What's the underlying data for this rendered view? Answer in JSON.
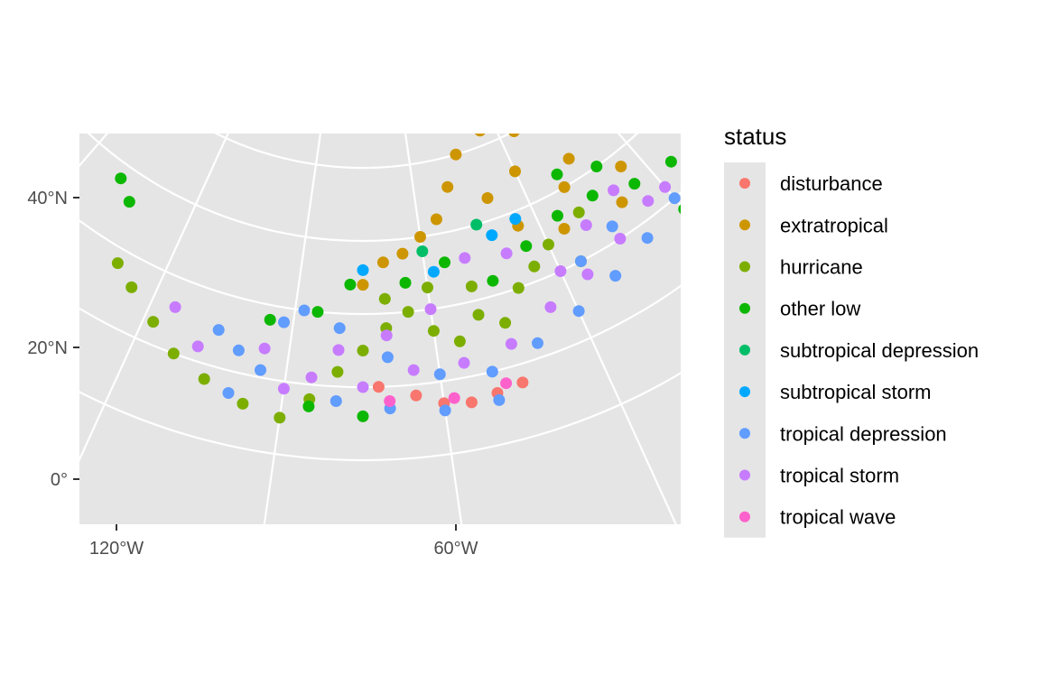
{
  "chart_data": {
    "type": "scatter",
    "projection": "polar (map graticule)",
    "grid": true,
    "legend_position": "right",
    "title": "",
    "xlabel": "",
    "ylabel": "",
    "x_ticks": [
      "120°W",
      "60°W"
    ],
    "y_ticks": [
      "40°N",
      "20°N",
      "0°"
    ],
    "legend": {
      "title": "status",
      "entries": [
        {
          "label": "disturbance",
          "color": "#F8766D"
        },
        {
          "label": "extratropical",
          "color": "#CD9600"
        },
        {
          "label": "hurricane",
          "color": "#7CAE00"
        },
        {
          "label": "other low",
          "color": "#0CB702"
        },
        {
          "label": "subtropical depression",
          "color": "#00BE67"
        },
        {
          "label": "subtropical storm",
          "color": "#00A9FF"
        },
        {
          "label": "tropical depression",
          "color": "#619CFF"
        },
        {
          "label": "tropical storm",
          "color": "#C77CFF"
        },
        {
          "label": "tropical wave",
          "color": "#FF61CC"
        }
      ]
    },
    "series": [
      {
        "name": "disturbance",
        "points": [
          [
            -60,
            7
          ],
          [
            -55,
            6.5
          ],
          [
            -50,
            7
          ],
          [
            -45,
            7.5
          ],
          [
            -65,
            8.5
          ],
          [
            -72,
            10
          ]
        ]
      },
      {
        "name": "extratropical",
        "points": [
          [
            -40,
            47
          ],
          [
            -30,
            48
          ],
          [
            -20,
            45
          ],
          [
            -10,
            38
          ],
          [
            -25,
            40
          ],
          [
            -35,
            42
          ],
          [
            -15,
            33
          ],
          [
            -45,
            40
          ],
          [
            -50,
            36
          ],
          [
            -30,
            35
          ],
          [
            -55,
            32
          ],
          [
            -60,
            30
          ],
          [
            -20,
            30
          ],
          [
            -5,
            28
          ],
          [
            -40,
            33
          ],
          [
            -10,
            24
          ],
          [
            -65,
            28
          ],
          [
            -70,
            27
          ],
          [
            -75,
            24
          ],
          [
            -25,
            25
          ],
          [
            -35,
            28
          ]
        ]
      },
      {
        "name": "hurricane",
        "points": [
          [
            -130,
            18
          ],
          [
            -125,
            16
          ],
          [
            -118,
            13
          ],
          [
            -112,
            10
          ],
          [
            -105,
            8
          ],
          [
            -97,
            6
          ],
          [
            -90,
            5
          ],
          [
            -85,
            8
          ],
          [
            -80,
            12
          ],
          [
            -75,
            15
          ],
          [
            -70,
            18
          ],
          [
            -65,
            20
          ],
          [
            -60,
            17
          ],
          [
            -55,
            15
          ],
          [
            -50,
            18
          ],
          [
            -45,
            16
          ],
          [
            -40,
            20
          ],
          [
            -35,
            22
          ],
          [
            -30,
            24
          ],
          [
            -25,
            20
          ],
          [
            -20,
            26
          ],
          [
            -70,
            22
          ],
          [
            -60,
            23
          ],
          [
            -50,
            22
          ]
        ]
      },
      {
        "name": "other low",
        "points": [
          [
            -140,
            28
          ],
          [
            -135,
            26
          ],
          [
            -95,
            18
          ],
          [
            -85,
            20
          ],
          [
            -78,
            24
          ],
          [
            -65,
            24
          ],
          [
            -55,
            26
          ],
          [
            -45,
            22
          ],
          [
            -35,
            25
          ],
          [
            -25,
            27
          ],
          [
            -15,
            27
          ],
          [
            -5,
            25
          ],
          [
            5,
            24
          ],
          [
            10,
            20
          ],
          [
            0,
            18
          ],
          [
            -10,
            30
          ],
          [
            -20,
            32
          ],
          [
            -75,
            6
          ],
          [
            -85,
            7
          ]
        ]
      },
      {
        "name": "subtropical depression",
        "points": [
          [
            -60,
            28
          ],
          [
            -45,
            30
          ]
        ]
      },
      {
        "name": "subtropical storm",
        "points": [
          [
            -58,
            25
          ],
          [
            -42,
            28
          ],
          [
            -75,
            26
          ],
          [
            -35,
            29
          ]
        ]
      },
      {
        "name": "tropical depression",
        "points": [
          [
            -105,
            15
          ],
          [
            -100,
            13
          ],
          [
            -95,
            11
          ],
          [
            -92,
            18
          ],
          [
            -88,
            20
          ],
          [
            -80,
            18
          ],
          [
            -70,
            14
          ],
          [
            -60,
            11
          ],
          [
            -50,
            10
          ],
          [
            -40,
            12
          ],
          [
            -30,
            14
          ],
          [
            -20,
            16
          ],
          [
            -10,
            18
          ],
          [
            0,
            20
          ],
          [
            5,
            18
          ],
          [
            -15,
            22
          ],
          [
            -25,
            20
          ],
          [
            -80,
            8
          ],
          [
            -70,
            7
          ],
          [
            -60,
            6
          ],
          [
            -50,
            6
          ],
          [
            -100,
            7
          ]
        ]
      },
      {
        "name": "tropical storm",
        "points": [
          [
            -115,
            16
          ],
          [
            -108,
            12
          ],
          [
            -90,
            9
          ],
          [
            -85,
            11
          ],
          [
            -75,
            10
          ],
          [
            -65,
            12
          ],
          [
            -55,
            12
          ],
          [
            -45,
            13
          ],
          [
            -35,
            16
          ],
          [
            -25,
            18
          ],
          [
            -15,
            20
          ],
          [
            -5,
            22
          ],
          [
            0,
            22
          ],
          [
            -40,
            25
          ],
          [
            -50,
            26
          ],
          [
            -60,
            20
          ],
          [
            -70,
            17
          ],
          [
            -80,
            15
          ],
          [
            -95,
            14
          ],
          [
            -30,
            20
          ],
          [
            -20,
            24
          ],
          [
            -10,
            26
          ]
        ]
      },
      {
        "name": "tropical wave",
        "points": [
          [
            -70,
            8
          ],
          [
            -58,
            7.5
          ],
          [
            -48,
            8
          ]
        ]
      }
    ]
  }
}
